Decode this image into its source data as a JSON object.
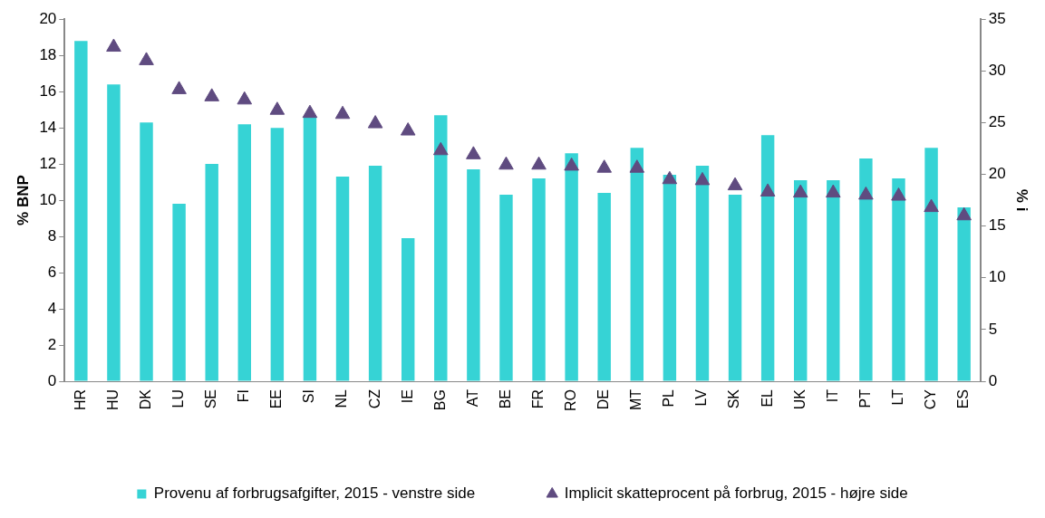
{
  "chart_data": {
    "type": "bar",
    "categories": [
      "HR",
      "HU",
      "DK",
      "LU",
      "SE",
      "FI",
      "EE",
      "SI",
      "NL",
      "CZ",
      "IE",
      "BG",
      "AT",
      "BE",
      "FR",
      "RO",
      "DE",
      "MT",
      "PL",
      "LV",
      "SK",
      "EL",
      "UK",
      "IT",
      "PT",
      "LT",
      "CY",
      "ES"
    ],
    "series": [
      {
        "name": "Provenu af forbrugsafgifter, 2015 - venstre side",
        "color": "#36d3d5",
        "values": [
          18.8,
          16.4,
          14.3,
          9.8,
          12.0,
          14.2,
          14.0,
          14.6,
          11.3,
          11.9,
          7.9,
          14.7,
          11.7,
          10.3,
          11.2,
          12.6,
          10.4,
          12.9,
          11.4,
          11.9,
          10.3,
          13.6,
          11.1,
          11.1,
          12.3,
          11.2,
          12.9,
          9.6
        ]
      },
      {
        "name": "Implicit skatteprocent på forbrug, 2015 - højre side",
        "type": "scatter",
        "axis": "y2",
        "marker": "triangle",
        "color": "#5f4b80",
        "values": [
          null,
          32.3,
          31.0,
          28.2,
          27.5,
          27.2,
          26.2,
          25.9,
          25.8,
          24.9,
          24.2,
          22.3,
          21.9,
          20.9,
          20.9,
          20.8,
          20.6,
          20.6,
          19.5,
          19.4,
          18.9,
          18.3,
          18.2,
          18.2,
          18.0,
          17.9,
          16.8,
          16.0
        ]
      }
    ],
    "ylabel": "% BNP",
    "y2label": "% i",
    "ylim": [
      0,
      20
    ],
    "yticks": [
      0,
      2,
      4,
      6,
      8,
      10,
      12,
      14,
      16,
      18,
      20
    ],
    "y2lim": [
      0,
      35
    ],
    "y2ticks": [
      0,
      5,
      10,
      15,
      20,
      25,
      30,
      35
    ],
    "grid": false,
    "legend": "bottom"
  }
}
